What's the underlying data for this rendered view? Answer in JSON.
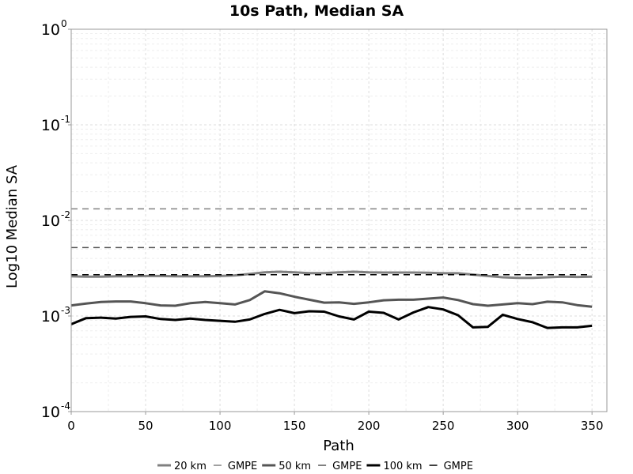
{
  "chart_data": {
    "type": "line",
    "title": "10s Path, Median SA",
    "xlabel": "Path",
    "ylabel": "Log10 Median SA",
    "xlim": [
      0,
      360
    ],
    "ylim": [
      0.0001,
      1
    ],
    "yscale": "log",
    "grid": true,
    "legend_position": "bottom",
    "xticks": [
      0,
      50,
      100,
      150,
      200,
      250,
      300,
      350
    ],
    "yticks": [
      {
        "base": "10",
        "exp": "0",
        "value": 1
      },
      {
        "base": "10",
        "exp": "-1",
        "value": 0.1
      },
      {
        "base": "10",
        "exp": "-2",
        "value": 0.01
      },
      {
        "base": "10",
        "exp": "-3",
        "value": 0.001
      },
      {
        "base": "10",
        "exp": "-4",
        "value": 0.0001
      }
    ],
    "x": [
      0,
      10,
      20,
      30,
      40,
      50,
      60,
      70,
      80,
      90,
      100,
      110,
      120,
      130,
      140,
      150,
      160,
      170,
      180,
      190,
      200,
      210,
      220,
      230,
      240,
      250,
      260,
      270,
      280,
      290,
      300,
      310,
      320,
      330,
      340,
      350
    ],
    "series": [
      {
        "name": "20 km",
        "color": "#808080",
        "style": "solid",
        "width": 3,
        "values": [
          0.0026,
          0.00258,
          0.00258,
          0.0026,
          0.0026,
          0.00262,
          0.00262,
          0.0026,
          0.0026,
          0.0026,
          0.00262,
          0.00266,
          0.00276,
          0.00286,
          0.0029,
          0.00286,
          0.00281,
          0.00281,
          0.00286,
          0.0029,
          0.00286,
          0.00285,
          0.00285,
          0.00285,
          0.00283,
          0.0028,
          0.0028,
          0.00271,
          0.00262,
          0.00254,
          0.0025,
          0.0025,
          0.00254,
          0.00258,
          0.00256,
          0.00258
        ]
      },
      {
        "name": "GMPE",
        "color": "#808080",
        "style": "dashed",
        "width": 1.5,
        "values": [
          0.0132,
          0.0132,
          0.0132,
          0.0132,
          0.0132,
          0.0132,
          0.0132,
          0.0132,
          0.0132,
          0.0132,
          0.0132,
          0.0132,
          0.0132,
          0.0132,
          0.0132,
          0.0132,
          0.0132,
          0.0132,
          0.0132,
          0.0132,
          0.0132,
          0.0132,
          0.0132,
          0.0132,
          0.0132,
          0.0132,
          0.0132,
          0.0132,
          0.0132,
          0.0132,
          0.0132,
          0.0132,
          0.0132,
          0.0132,
          0.0132,
          0.0132
        ]
      },
      {
        "name": "50 km",
        "color": "#555555",
        "style": "solid",
        "width": 3,
        "values": [
          0.00129,
          0.00135,
          0.0014,
          0.00142,
          0.00142,
          0.00136,
          0.00129,
          0.00128,
          0.00136,
          0.0014,
          0.00136,
          0.00132,
          0.00147,
          0.00181,
          0.00173,
          0.00159,
          0.00148,
          0.00138,
          0.00139,
          0.00134,
          0.00139,
          0.00146,
          0.00148,
          0.00148,
          0.00152,
          0.00156,
          0.00147,
          0.00133,
          0.00128,
          0.00132,
          0.00136,
          0.00133,
          0.00141,
          0.00139,
          0.0013,
          0.00125
        ]
      },
      {
        "name": "GMPE",
        "color": "#555555",
        "style": "dashed",
        "width": 1.5,
        "values": [
          0.0052,
          0.0052,
          0.0052,
          0.0052,
          0.0052,
          0.0052,
          0.0052,
          0.0052,
          0.0052,
          0.0052,
          0.0052,
          0.0052,
          0.0052,
          0.0052,
          0.0052,
          0.0052,
          0.0052,
          0.0052,
          0.0052,
          0.0052,
          0.0052,
          0.0052,
          0.0052,
          0.0052,
          0.0052,
          0.0052,
          0.0052,
          0.0052,
          0.0052,
          0.0052,
          0.0052,
          0.0052,
          0.0052,
          0.0052,
          0.0052,
          0.0052
        ]
      },
      {
        "name": "100 km",
        "color": "#000000",
        "style": "solid",
        "width": 3,
        "values": [
          0.00082,
          0.00095,
          0.00096,
          0.00094,
          0.00098,
          0.00099,
          0.00093,
          0.00091,
          0.00094,
          0.00091,
          0.00089,
          0.00087,
          0.00092,
          0.00105,
          0.00116,
          0.00107,
          0.00112,
          0.00111,
          0.00099,
          0.00092,
          0.00111,
          0.00108,
          0.00092,
          0.00109,
          0.00124,
          0.00117,
          0.00102,
          0.00076,
          0.00077,
          0.00103,
          0.00093,
          0.00086,
          0.00075,
          0.00076,
          0.00076,
          0.00079
        ]
      },
      {
        "name": "GMPE",
        "color": "#000000",
        "style": "dashed",
        "width": 1.5,
        "values": [
          0.0027,
          0.0027,
          0.0027,
          0.0027,
          0.0027,
          0.0027,
          0.0027,
          0.0027,
          0.0027,
          0.0027,
          0.0027,
          0.0027,
          0.0027,
          0.0027,
          0.0027,
          0.0027,
          0.0027,
          0.0027,
          0.0027,
          0.0027,
          0.0027,
          0.0027,
          0.0027,
          0.0027,
          0.0027,
          0.0027,
          0.0027,
          0.0027,
          0.0027,
          0.0027,
          0.0027,
          0.0027,
          0.0027,
          0.0027,
          0.0027,
          0.0027
        ]
      }
    ]
  }
}
